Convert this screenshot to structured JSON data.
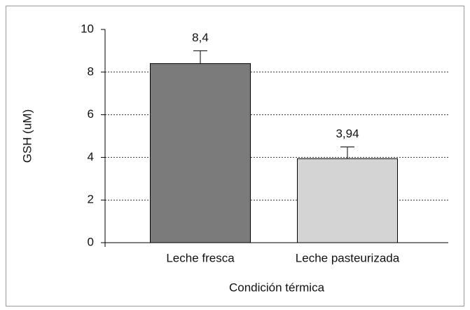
{
  "chart_data": {
    "type": "bar",
    "categories": [
      "Leche fresca",
      "Leche pasteurizada"
    ],
    "values": [
      8.4,
      3.94
    ],
    "value_labels": [
      "8,4",
      "3,94"
    ],
    "errors": [
      0.6,
      0.55
    ],
    "colors": [
      "#7b7b7c",
      "#d4d4d4"
    ],
    "ylabel": "GSH (uM)",
    "xlabel": "Condición térmica",
    "ylim": [
      0,
      10
    ],
    "yticks": [
      0,
      2,
      4,
      6,
      8,
      10
    ],
    "grid": true
  }
}
